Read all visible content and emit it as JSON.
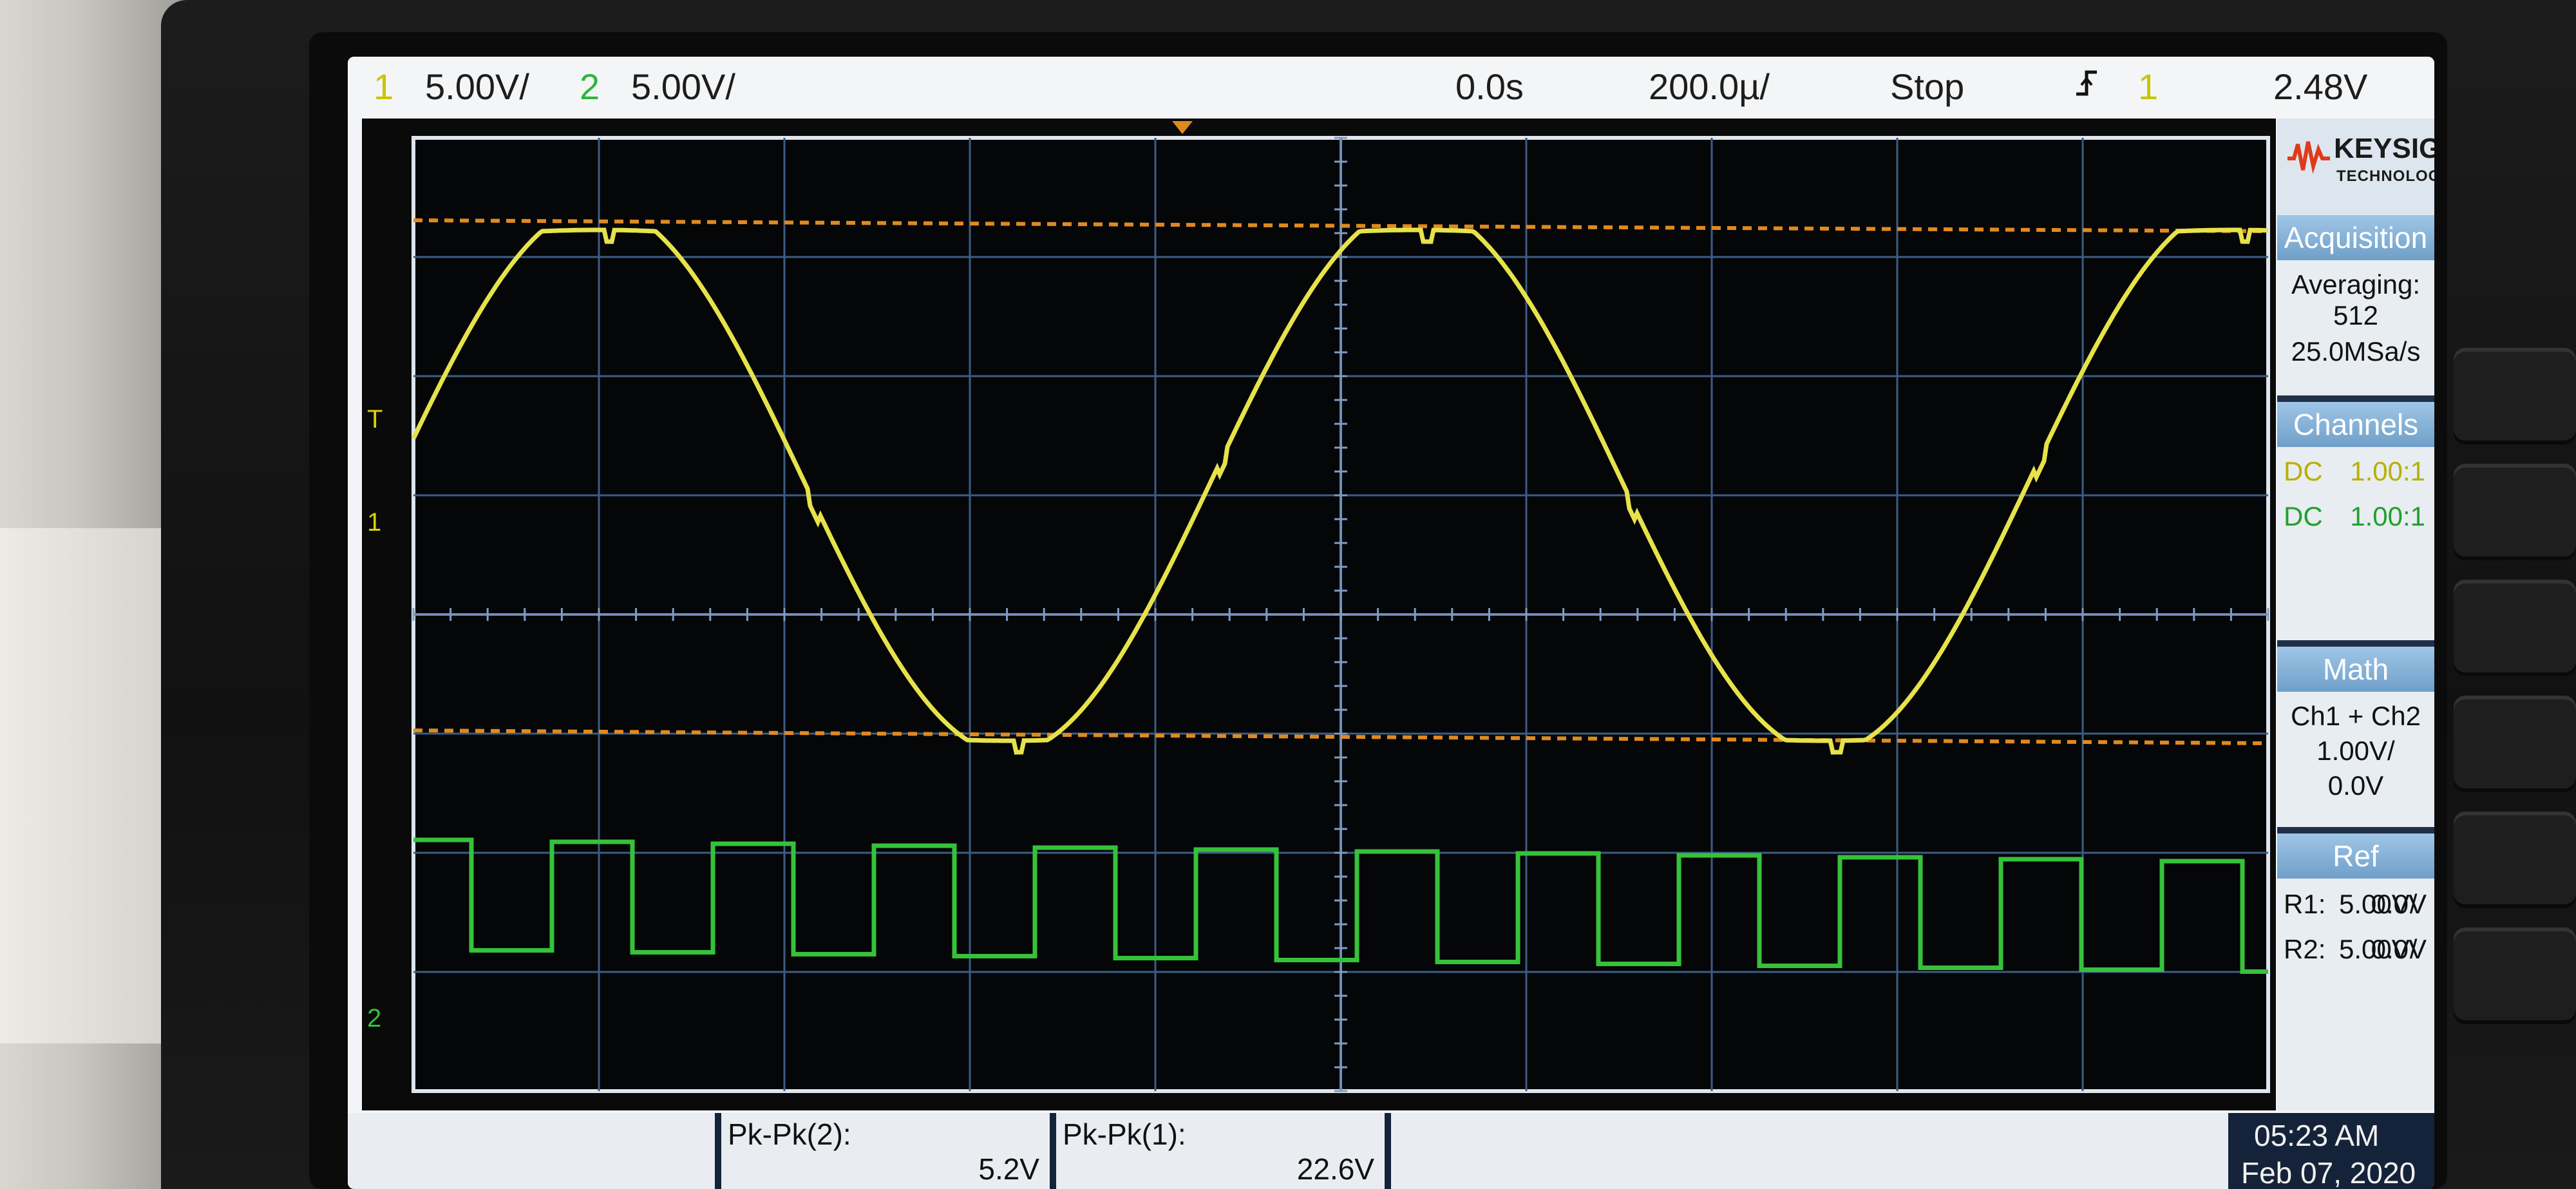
{
  "topbar": {
    "ch1_num": "1",
    "ch1_scale": "5.00V/",
    "ch2_num": "2",
    "ch2_scale": "5.00V/",
    "delay": "0.0s",
    "timebase": "200.0µ/",
    "run_state": "Stop",
    "trigger_icon": "trigger-edge-icon",
    "trigger_source": "1",
    "trigger_level": "2.48V"
  },
  "brand": {
    "name": "KEYSIGHT",
    "sub": "TECHNOLOGIES",
    "accent_color": "#e03a1c"
  },
  "panel": {
    "acquisition": {
      "title": "Acquisition",
      "mode": "Averaging: 512",
      "rate": "25.0MSa/s"
    },
    "channels": {
      "title": "Channels",
      "rows": [
        {
          "coupling": "DC",
          "probe": "1.00:1",
          "color": "#d8d200"
        },
        {
          "coupling": "DC",
          "probe": "1.00:1",
          "color": "#2fb63a"
        }
      ]
    },
    "math": {
      "title": "Math",
      "expr": "Ch1 + Ch2",
      "scale": "1.00V/",
      "offset": "0.0V"
    },
    "ref": {
      "title": "Ref",
      "rows": [
        {
          "label": "R1:",
          "scale": "5.00V/",
          "offset": "0.0V"
        },
        {
          "label": "R2:",
          "scale": "5.00V/",
          "offset": "0.0V"
        }
      ]
    }
  },
  "markers": {
    "ch1": "1",
    "ch2": "2",
    "trigger": "T"
  },
  "measurements": [
    {
      "label": "Pk-Pk(2):",
      "value": "5.2V"
    },
    {
      "label": "Pk-Pk(1):",
      "value": "22.6V"
    }
  ],
  "clock": {
    "time": "05:23 AM",
    "date": "Feb 07, 2020"
  },
  "colors": {
    "ch1": "#e6e24a",
    "ch2": "#35c23a",
    "cursor": "#e08a1e"
  }
}
